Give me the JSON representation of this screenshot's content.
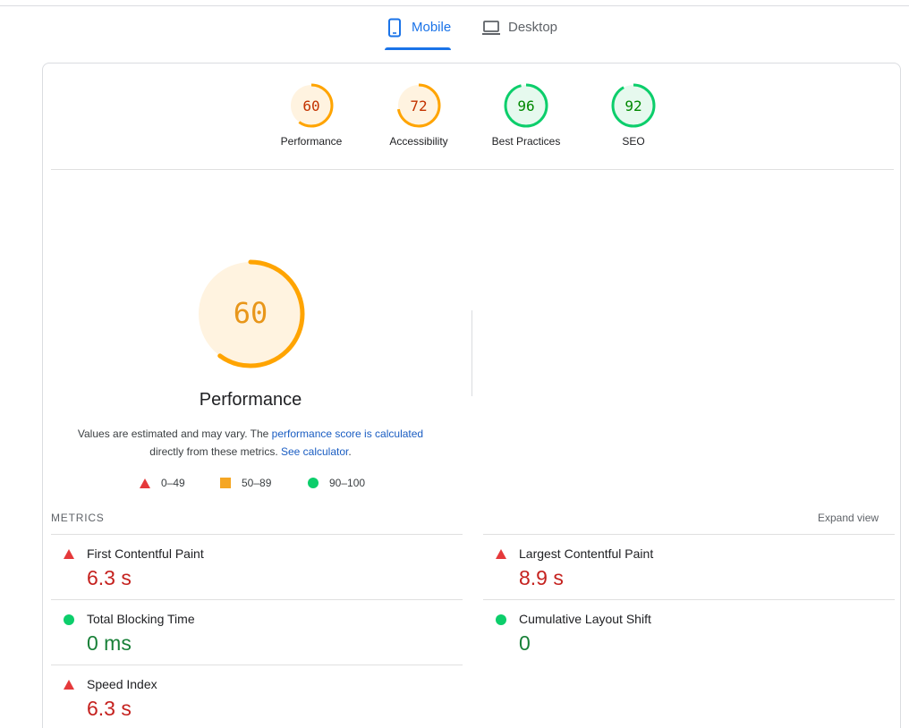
{
  "tabs": [
    {
      "label": "Mobile",
      "icon": "phone-icon",
      "active": true
    },
    {
      "label": "Desktop",
      "icon": "laptop-icon",
      "active": false
    }
  ],
  "gauges": [
    {
      "score": "60",
      "label": "Performance",
      "value": 60,
      "color": "#ffa400",
      "fill": "#fff3e0",
      "text_color": "#c33300"
    },
    {
      "score": "72",
      "label": "Accessibility",
      "value": 72,
      "color": "#ffa400",
      "fill": "#fff3e0",
      "text_color": "#c33300"
    },
    {
      "score": "96",
      "label": "Best Practices",
      "value": 96,
      "color": "#0cce6b",
      "fill": "#e6f9ee",
      "text_color": "#008800"
    },
    {
      "score": "92",
      "label": "SEO",
      "value": 92,
      "color": "#0cce6b",
      "fill": "#e6f9ee",
      "text_color": "#008800"
    }
  ],
  "performance": {
    "score": "60",
    "value": 60,
    "title": "Performance",
    "note_prefix": "Values are estimated and may vary. The ",
    "note_link1": "performance score is calculated",
    "note_middle": " directly from these metrics. ",
    "note_link2": "See calculator",
    "note_suffix": "."
  },
  "legend": [
    {
      "shape": "triangle",
      "range": "0–49",
      "color": "#e5393b"
    },
    {
      "shape": "square",
      "range": "50–89",
      "color": "#f5a623"
    },
    {
      "shape": "circle",
      "range": "90–100",
      "color": "#0cce6b"
    }
  ],
  "metrics": {
    "heading": "METRICS",
    "expand_label": "Expand view",
    "items": [
      {
        "name": "First Contentful Paint",
        "value": "6.3 s",
        "status": "fail"
      },
      {
        "name": "Largest Contentful Paint",
        "value": "8.9 s",
        "status": "fail"
      },
      {
        "name": "Total Blocking Time",
        "value": "0 ms",
        "status": "pass"
      },
      {
        "name": "Cumulative Layout Shift",
        "value": "0",
        "status": "pass"
      },
      {
        "name": "Speed Index",
        "value": "6.3 s",
        "status": "fail"
      }
    ]
  }
}
